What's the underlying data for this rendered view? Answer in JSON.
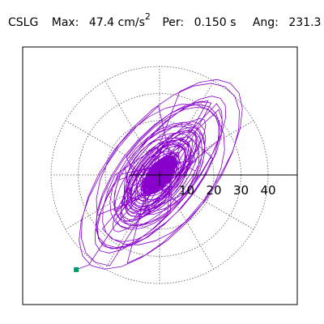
{
  "header": {
    "station": "CSLG",
    "max_label": "Max:",
    "max_value": "47.4 cm/s",
    "max_exp": "2",
    "per_label": "Per:",
    "per_value": "0.150 s",
    "ang_label": "Ang:",
    "ang_value": "231.3"
  },
  "chart_data": {
    "type": "scatter",
    "title": "CSLG   Max:   47.4 cm/s2   Per:  0.150 s   Ang: 231.3",
    "xlabel": "",
    "ylabel": "",
    "radial_ticks": [
      10,
      20,
      30,
      40
    ],
    "radial_rings": [
      10,
      20,
      30,
      40
    ],
    "spokes_deg": [
      30,
      60,
      90,
      120,
      150,
      180,
      210,
      240,
      270,
      300,
      330
    ],
    "grid": true,
    "series_color": "#8800cc",
    "end_marker_color": "#009966",
    "end_point": [
      -30.7,
      -34.9
    ],
    "orbit": {
      "peak_amplitude": 47.4,
      "major_axis_angle_deg": 51.3,
      "max_major_semi_axis": 44,
      "max_minor_semi_axis": 21
    }
  }
}
